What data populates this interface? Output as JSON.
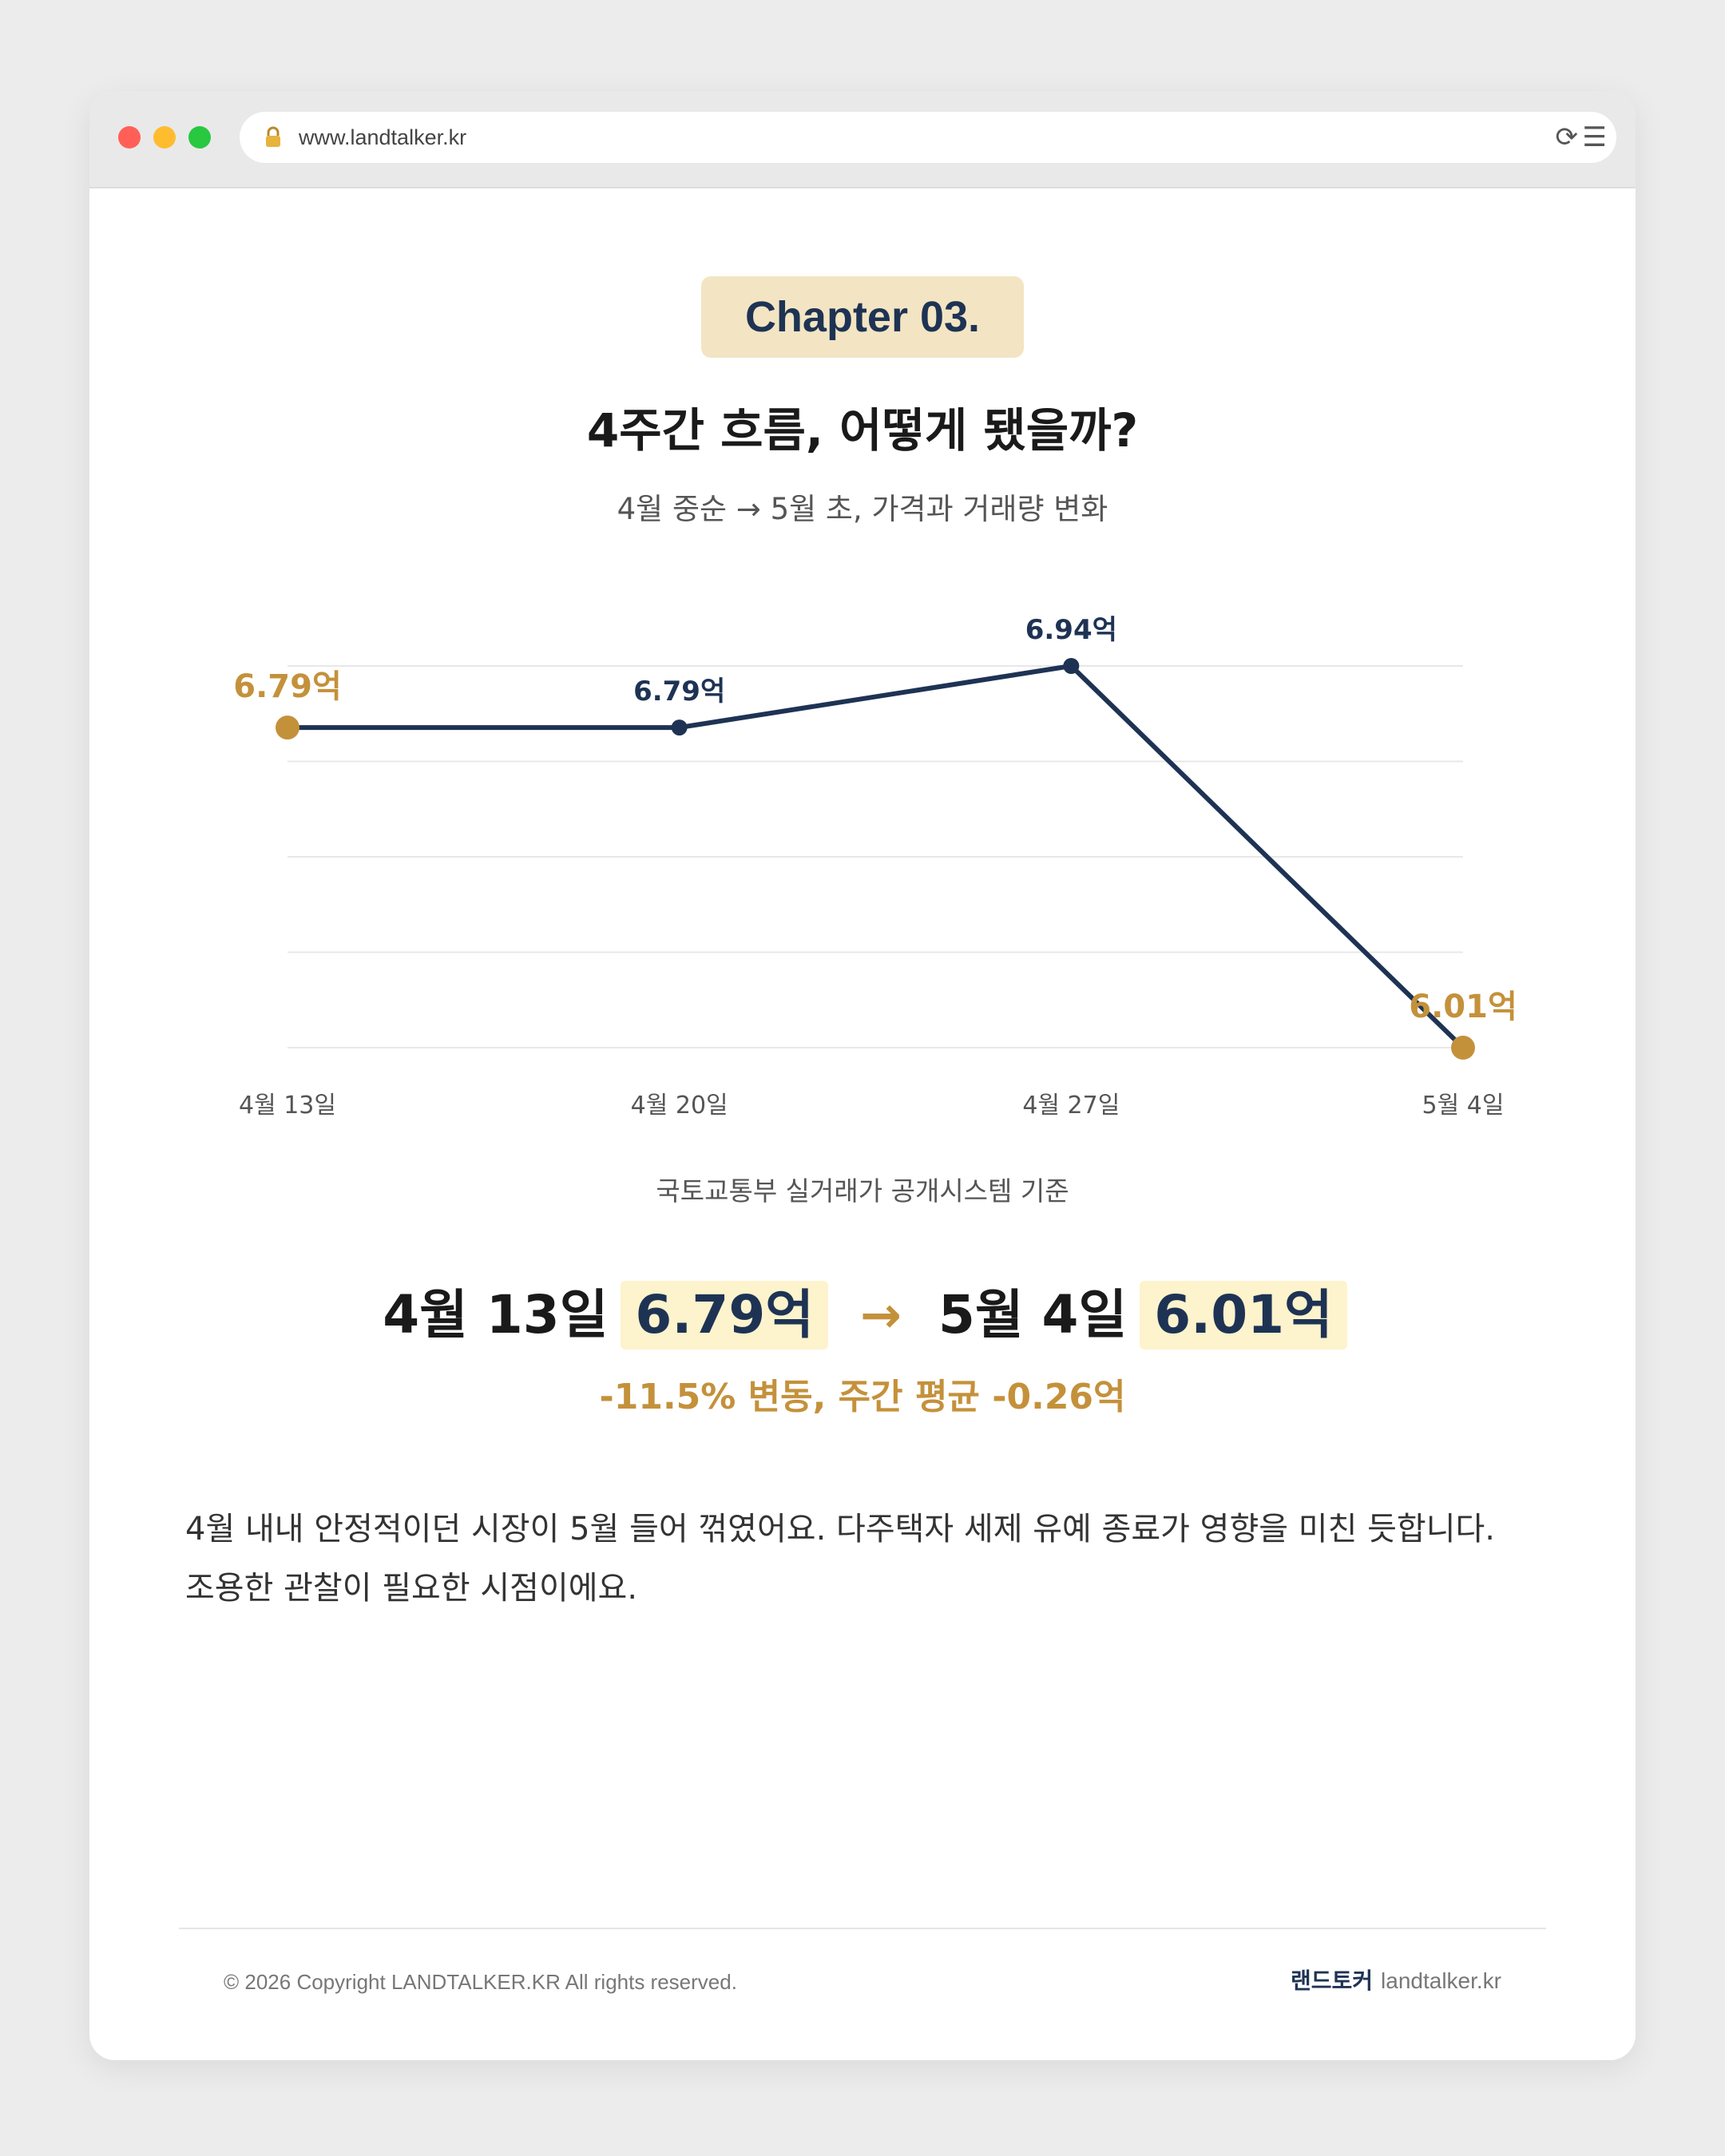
{
  "browser": {
    "url": "www.landtalker.kr"
  },
  "chapter": "Chapter 03.",
  "heading": "4주간 흐름, 어떻게 됐을까?",
  "subheading": "4월 중순 → 5월 초, 가격과 거래량 변화",
  "chart_data": {
    "type": "line",
    "categories": [
      "4월 13일",
      "4월 20일",
      "4월 27일",
      "5월 4일"
    ],
    "values": [
      6.79,
      6.79,
      6.94,
      6.01
    ],
    "data_labels": [
      "6.79억",
      "6.79억",
      "6.94억",
      "6.01억"
    ],
    "highlighted_points": [
      0,
      3
    ],
    "ylim": [
      6.01,
      6.94
    ],
    "grid": true,
    "colors": {
      "line": "#1e3354",
      "highlight": "#c4913b",
      "grid": "#e8e8e8"
    }
  },
  "source_note": "국토교통부 실거래가 공개시스템 기준",
  "summary": {
    "start_date": "4월 13일",
    "start_value": "6.79억",
    "arrow": "→",
    "end_date": "5월 4일",
    "end_value": "6.01억",
    "change": "-11.5% 변동, 주간 평균 -0.26억"
  },
  "body": {
    "line1": "4월 내내 안정적이던 시장이 5월 들어 꺾였어요. 다주택자 세제 유예 종료가 영향을 미친 듯합니다.",
    "line2": "조용한 관찰이 필요한 시점이에요."
  },
  "footer": {
    "copyright": "© 2026 Copyright LANDTALKER.KR All rights reserved.",
    "brand_ko": "랜드토커",
    "brand_en": "landtalker.kr"
  }
}
